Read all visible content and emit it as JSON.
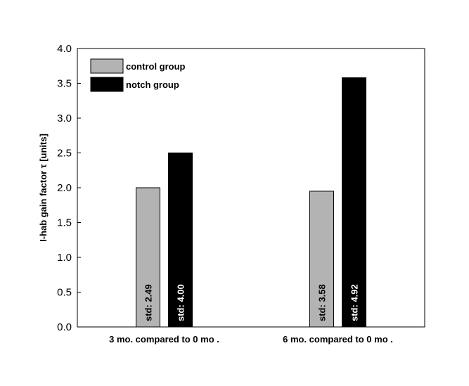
{
  "chart_data": {
    "type": "bar",
    "categories": [
      "3 mo. compared to 0 mo .",
      "6 mo. compared to 0 mo ."
    ],
    "series": [
      {
        "name": "control group",
        "color": "#b3b3b3",
        "values": [
          2.0,
          1.95
        ],
        "bar_labels": [
          "std: 2.49",
          "std: 3.58"
        ],
        "bar_label_color": "#000000"
      },
      {
        "name": "notch group",
        "color": "#000000",
        "values": [
          2.5,
          3.58
        ],
        "bar_labels": [
          "std: 4.00",
          "std: 4.92"
        ],
        "bar_label_color": "#ffffff"
      }
    ],
    "xlabel": "",
    "ylabel": "I-hab gain factor  τ [units]",
    "ylim": [
      0,
      4.0
    ],
    "yticks": [
      0.0,
      0.5,
      1.0,
      1.5,
      2.0,
      2.5,
      3.0,
      3.5,
      4.0
    ],
    "ytick_labels": [
      "0.0",
      "0.5",
      "1.0",
      "1.5",
      "2.0",
      "2.5",
      "3.0",
      "3.5",
      "4.0"
    ],
    "grid": false,
    "legend_position": "top-left"
  }
}
